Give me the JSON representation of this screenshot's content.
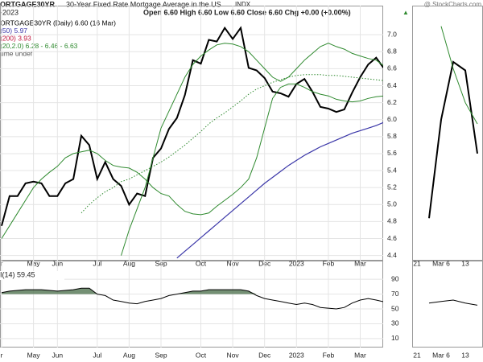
{
  "header": {
    "symbol": "ORTGAGE30YR",
    "name": "30-Year Fixed Rate Mortgage Average in the US",
    "exchange": "INDX",
    "date": "-2023",
    "quote": "Open 6.60 High 6.60 Low 6.60 Close 6.60 Chg +0.00 (+0.00%)",
    "arrow": "▲",
    "watermark": "@ StockCharts.com",
    "legend": [
      {
        "text": "ORTGAGE30YR (Daily) 6.60 (16 Mar)",
        "color": "#000000"
      },
      {
        "text": "(50) 5.97",
        "color": "#3a36a8"
      },
      {
        "text": "(200) 3.93",
        "color": "#c0143c"
      },
      {
        "text": "(20,2.0) 6.28 - 6.46 - 6.63",
        "color": "#2f8a2f"
      },
      {
        "text": "ume undef",
        "color": "#555555"
      }
    ],
    "rsi_legend": "I(14) 59.45"
  },
  "chart_data": [
    {
      "type": "line",
      "categories": [
        "r",
        null,
        null,
        null,
        "May",
        null,
        null,
        "Jun",
        null,
        null,
        null,
        null,
        "Jul",
        null,
        null,
        null,
        "Aug",
        null,
        null,
        null,
        "Sep",
        null,
        null,
        null,
        null,
        "Oct",
        null,
        null,
        null,
        "Nov",
        null,
        null,
        null,
        "Dec",
        null,
        null,
        null,
        "2023",
        null,
        null,
        null,
        "Feb",
        null,
        null,
        null,
        "Mar",
        null,
        null,
        null
      ],
      "series": [
        {
          "name": "Close",
          "color": "#000000",
          "width": 2,
          "values": [
            4.75,
            5.1,
            5.1,
            5.25,
            5.27,
            5.25,
            5.1,
            5.1,
            5.25,
            5.3,
            5.81,
            5.7,
            5.3,
            5.5,
            5.3,
            5.22,
            5.0,
            5.13,
            5.1,
            5.55,
            5.66,
            5.89,
            6.02,
            6.29,
            6.7,
            6.66,
            6.94,
            6.92,
            7.08,
            6.95,
            7.08,
            6.61,
            6.58,
            6.49,
            6.33,
            6.31,
            6.27,
            6.42,
            6.48,
            6.33,
            6.15,
            6.13,
            6.09,
            6.12,
            6.32,
            6.5,
            6.65,
            6.73,
            6.6
          ]
        },
        {
          "name": "BB Lower",
          "color": "#2f8a2f",
          "width": 1,
          "values": [
            4.6,
            4.75,
            4.9,
            5.05,
            5.2,
            5.3,
            5.38,
            5.45,
            5.55,
            5.6,
            5.62,
            5.64,
            5.6,
            5.52,
            5.46,
            5.44,
            5.43,
            5.38,
            5.3,
            5.2,
            5.13,
            5.1,
            5.0,
            4.92,
            4.89,
            4.88,
            4.9,
            4.98,
            5.05,
            5.12,
            5.2,
            5.3,
            5.55,
            5.9,
            6.25,
            6.38,
            6.42,
            6.42,
            6.38,
            6.33,
            6.3,
            6.28,
            6.24,
            6.22,
            6.21,
            6.22,
            6.25,
            6.27,
            6.28
          ]
        },
        {
          "name": "BB Upper",
          "color": "#2f8a2f",
          "width": 1,
          "values": [
            null,
            null,
            null,
            null,
            null,
            null,
            null,
            null,
            null,
            null,
            null,
            null,
            null,
            null,
            null,
            4.4,
            4.7,
            4.95,
            5.2,
            5.55,
            5.9,
            6.1,
            6.3,
            6.5,
            6.65,
            6.75,
            6.82,
            6.88,
            6.9,
            6.89,
            6.86,
            6.8,
            6.7,
            6.6,
            6.5,
            6.45,
            6.5,
            6.6,
            6.7,
            6.78,
            6.86,
            6.9,
            6.86,
            6.83,
            6.78,
            6.75,
            6.72,
            6.7,
            6.63
          ]
        },
        {
          "name": "BB Middle",
          "color": "#2f8a2f",
          "width": 1,
          "style": "dotted",
          "values": [
            null,
            null,
            null,
            null,
            null,
            null,
            null,
            null,
            null,
            null,
            4.9,
            5.0,
            5.08,
            5.15,
            5.2,
            5.27,
            5.3,
            5.35,
            5.4,
            5.45,
            5.5,
            5.56,
            5.63,
            5.7,
            5.78,
            5.86,
            5.95,
            6.02,
            6.08,
            6.15,
            6.22,
            6.3,
            6.36,
            6.4,
            6.44,
            6.47,
            6.5,
            6.52,
            6.53,
            6.53,
            6.53,
            6.52,
            6.52,
            6.51,
            6.5,
            6.49,
            6.48,
            6.47,
            6.46
          ]
        },
        {
          "name": "MA 50",
          "color": "#3a36a8",
          "width": 1.2,
          "values": [
            null,
            null,
            null,
            null,
            null,
            null,
            null,
            null,
            null,
            null,
            null,
            null,
            null,
            null,
            null,
            null,
            null,
            null,
            null,
            null,
            null,
            null,
            4.37,
            4.45,
            4.53,
            4.61,
            4.69,
            4.77,
            4.85,
            4.93,
            5.01,
            5.09,
            5.17,
            5.25,
            5.32,
            5.39,
            5.46,
            5.52,
            5.58,
            5.63,
            5.68,
            5.72,
            5.76,
            5.8,
            5.84,
            5.87,
            5.9,
            5.93,
            5.97
          ]
        }
      ],
      "ylim": [
        4.33,
        7.21
      ],
      "yticks": [
        4.4,
        4.6,
        4.8,
        {
          "value": 5.0,
          "label": "5.0"
        },
        5.2,
        5.4,
        5.6,
        5.8,
        {
          "value": 6.0,
          "label": "6.0"
        },
        6.2,
        6.4,
        6.6,
        6.8,
        {
          "value": 7.0,
          "label": "7.0"
        }
      ],
      "grid": true
    },
    {
      "type": "line",
      "categories": [
        "r",
        null,
        null,
        null,
        "May",
        null,
        null,
        "Jun",
        null,
        null,
        null,
        null,
        "Jul",
        null,
        null,
        null,
        "Aug",
        null,
        null,
        null,
        "Sep",
        null,
        null,
        null,
        null,
        "Oct",
        null,
        null,
        null,
        "Nov",
        null,
        null,
        null,
        "Dec",
        null,
        null,
        null,
        "2023",
        null,
        null,
        null,
        "Feb",
        null,
        null,
        null,
        "Mar",
        null,
        null,
        null
      ],
      "series": [
        {
          "name": "RSI",
          "color": "#000000",
          "width": 1,
          "fill": "#5c7d5c",
          "fill_above": 70,
          "values": [
            72,
            74,
            75,
            76,
            76,
            76,
            75,
            74,
            75,
            76,
            78,
            78,
            70,
            68,
            62,
            60,
            58,
            57,
            60,
            62,
            64,
            68,
            70,
            72,
            74,
            74,
            76,
            76,
            76,
            76,
            76,
            74,
            68,
            64,
            62,
            60,
            58,
            56,
            58,
            56,
            52,
            51,
            50,
            52,
            58,
            62,
            64,
            62,
            59.45
          ]
        }
      ],
      "ylim": [
        -2,
        101
      ],
      "yticks": [
        10,
        30,
        50,
        70,
        90
      ],
      "grid": true
    },
    {
      "type": "line",
      "categories": [
        "21",
        null,
        "Mar 6",
        null,
        "13",
        null
      ],
      "series": [
        {
          "name": "Close",
          "color": "#000000",
          "width": 2,
          "values": [
            null,
            4.84,
            6.0,
            6.68,
            6.58,
            5.6
          ]
        },
        {
          "name": "BB Upper",
          "color": "#2f8a2f",
          "width": 1,
          "values": [
            null,
            null,
            7.1,
            6.6,
            6.2,
            5.95
          ]
        }
      ],
      "ylim": [
        4.33,
        7.21
      ]
    },
    {
      "type": "line",
      "categories": [
        "21",
        null,
        "Mar 6",
        null,
        "13",
        null
      ],
      "series": [
        {
          "name": "RSI",
          "color": "#000000",
          "width": 1,
          "values": [
            null,
            58,
            60,
            62,
            58,
            55
          ]
        }
      ],
      "ylim": [
        -2,
        101
      ]
    }
  ]
}
